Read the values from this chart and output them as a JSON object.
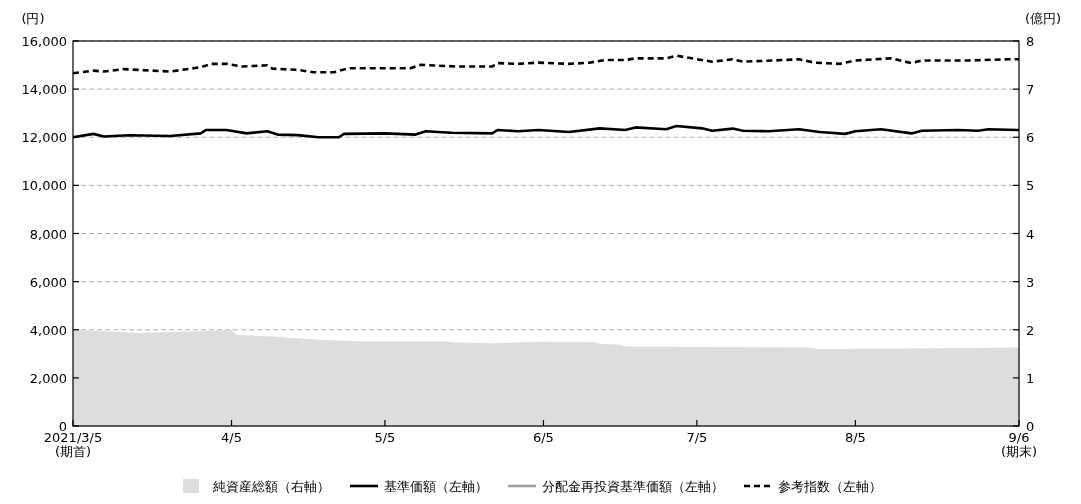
{
  "chart_data": {
    "type": "line",
    "ylabel": "(円)",
    "y2label": "(億円)",
    "xlim": [
      "2021-03-05",
      "2021-09-06"
    ],
    "xticks": [
      {
        "value": "2021-03-05",
        "label": "2021/3/5\n(期首)"
      },
      {
        "value": "2021-04-05",
        "label": "4/5"
      },
      {
        "value": "2021-05-05",
        "label": "5/5"
      },
      {
        "value": "2021-06-05",
        "label": "6/5"
      },
      {
        "value": "2021-07-05",
        "label": "7/5"
      },
      {
        "value": "2021-08-05",
        "label": "8/5"
      },
      {
        "value": "2021-09-06",
        "label": "9/6\n(期末)"
      }
    ],
    "ylim": [
      0,
      16000
    ],
    "yticks": [
      0,
      {
        "value": 2000,
        "label": "2,000"
      },
      {
        "value": 4000,
        "label": "4,000"
      },
      {
        "value": 6000,
        "label": "6,000"
      },
      {
        "value": 8000,
        "label": "8,000"
      },
      {
        "value": 10000,
        "label": "10,000"
      },
      {
        "value": 12000,
        "label": "12,000"
      },
      {
        "value": 14000,
        "label": "14,000"
      },
      {
        "value": 16000,
        "label": "16,000"
      }
    ],
    "y2lim": [
      0,
      8
    ],
    "y2ticks": [
      0,
      1,
      2,
      3,
      4,
      5,
      6,
      7,
      8
    ],
    "grid": "y",
    "legend": "bottom",
    "series": [
      {
        "name": "純資産総額（右軸）",
        "type": "area",
        "axis": "y2",
        "color": "#dcdddd",
        "x": [
          "2021-03-05",
          "2021-03-18",
          "2021-03-30",
          "2021-04-05",
          "2021-04-06",
          "2021-04-13",
          "2021-04-22",
          "2021-04-30",
          "2021-05-17",
          "2021-05-18",
          "2021-05-26",
          "2021-06-04",
          "2021-06-15",
          "2021-06-16",
          "2021-06-20",
          "2021-06-21",
          "2021-07-06",
          "2021-07-27",
          "2021-07-29",
          "2021-08-15",
          "2021-09-06"
        ],
        "values": [
          2.0,
          1.93,
          1.97,
          2.0,
          1.89,
          1.86,
          1.79,
          1.76,
          1.76,
          1.74,
          1.72,
          1.75,
          1.74,
          1.71,
          1.69,
          1.65,
          1.64,
          1.63,
          1.6,
          1.61,
          1.63
        ]
      },
      {
        "name": "基準価額（左軸）",
        "color": "#000000",
        "line_style": "solid",
        "x": [
          "2021-03-05",
          "2021-03-09",
          "2021-03-11",
          "2021-03-16",
          "2021-03-24",
          "2021-03-30",
          "2021-03-31",
          "2021-04-04",
          "2021-04-08",
          "2021-04-12",
          "2021-04-14",
          "2021-04-18",
          "2021-04-22",
          "2021-04-26",
          "2021-04-27",
          "2021-05-05",
          "2021-05-11",
          "2021-05-13",
          "2021-05-18",
          "2021-05-26",
          "2021-05-27",
          "2021-05-31",
          "2021-06-04",
          "2021-06-10",
          "2021-06-16",
          "2021-06-21",
          "2021-06-23",
          "2021-06-29",
          "2021-07-01",
          "2021-07-06",
          "2021-07-08",
          "2021-07-12",
          "2021-07-14",
          "2021-07-19",
          "2021-07-25",
          "2021-07-29",
          "2021-08-03",
          "2021-08-05",
          "2021-08-10",
          "2021-08-16",
          "2021-08-18",
          "2021-08-25",
          "2021-08-29",
          "2021-08-31",
          "2021-09-06"
        ],
        "values": [
          12000,
          12140,
          12030,
          12080,
          12050,
          12160,
          12300,
          12300,
          12160,
          12250,
          12110,
          12090,
          12000,
          12000,
          12140,
          12160,
          12110,
          12250,
          12190,
          12160,
          12300,
          12250,
          12300,
          12220,
          12370,
          12300,
          12410,
          12330,
          12470,
          12370,
          12270,
          12360,
          12270,
          12250,
          12330,
          12220,
          12140,
          12250,
          12330,
          12160,
          12270,
          12300,
          12270,
          12330,
          12300
        ]
      },
      {
        "name": "分配金再投資基準価額（左軸）",
        "color": "#a0a0a0",
        "line_style": "solid"
      },
      {
        "name": "参考指数（左軸）",
        "color": "#000000",
        "line_style": "dashed",
        "x": [
          "2021-03-05",
          "2021-03-09",
          "2021-03-11",
          "2021-03-15",
          "2021-03-24",
          "2021-03-30",
          "2021-04-01",
          "2021-04-04",
          "2021-04-07",
          "2021-04-12",
          "2021-04-13",
          "2021-04-18",
          "2021-04-21",
          "2021-04-25",
          "2021-04-28",
          "2021-05-10",
          "2021-05-12",
          "2021-05-19",
          "2021-05-26",
          "2021-05-27",
          "2021-05-31",
          "2021-06-04",
          "2021-06-10",
          "2021-06-14",
          "2021-06-17",
          "2021-06-21",
          "2021-06-23",
          "2021-06-29",
          "2021-07-01",
          "2021-07-04",
          "2021-07-08",
          "2021-07-12",
          "2021-07-14",
          "2021-07-20",
          "2021-07-25",
          "2021-07-28",
          "2021-08-02",
          "2021-08-05",
          "2021-08-12",
          "2021-08-16",
          "2021-08-18",
          "2021-08-27",
          "2021-09-04",
          "2021-09-06"
        ],
        "values": [
          14660,
          14770,
          14730,
          14830,
          14730,
          14910,
          15050,
          15050,
          14940,
          14990,
          14850,
          14800,
          14700,
          14700,
          14870,
          14870,
          15010,
          14940,
          14940,
          15080,
          15050,
          15100,
          15050,
          15100,
          15210,
          15210,
          15280,
          15280,
          15390,
          15280,
          15140,
          15240,
          15140,
          15190,
          15240,
          15100,
          15050,
          15190,
          15280,
          15080,
          15190,
          15190,
          15240,
          15240
        ]
      }
    ]
  }
}
